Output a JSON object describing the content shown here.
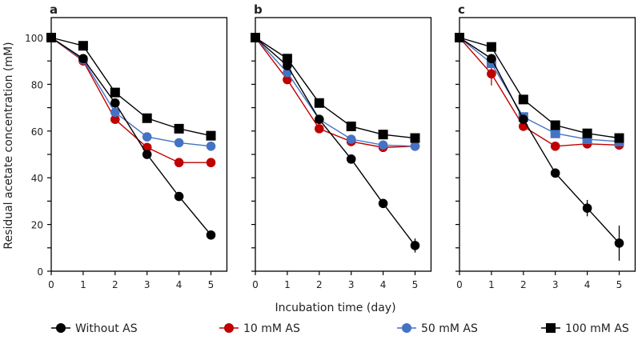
{
  "chart_data": {
    "type": "line",
    "ylabel": "Residual acetate concentration (mM)",
    "xlabel": "Incubation time (day)",
    "x": [
      0,
      1,
      2,
      3,
      4,
      5
    ],
    "xticks": [
      "0",
      "1",
      "2",
      "3",
      "4",
      "5"
    ],
    "yticks": [
      "0",
      "20",
      "40",
      "60",
      "80",
      "100"
    ],
    "ylim": [
      0,
      110
    ],
    "xlim": [
      0,
      5.5
    ],
    "legend_position": "bottom",
    "legend": [
      {
        "name": "Without AS",
        "color": "#000000",
        "marker": "circle"
      },
      {
        "name": "10 mM AS",
        "color": "#c00000",
        "marker": "circle"
      },
      {
        "name": "50 mM AS",
        "color": "#4472c4",
        "marker": "circle"
      },
      {
        "name": "100 mM AS",
        "color": "#000000",
        "marker": "square"
      }
    ],
    "panels": [
      {
        "label": "a",
        "series": [
          {
            "name": "Without AS",
            "values": [
              100,
              91,
              72,
              50,
              32,
              15.5
            ],
            "err": [
              0,
              0,
              0,
              0,
              0,
              0
            ]
          },
          {
            "name": "10 mM AS",
            "values": [
              100,
              90,
              65,
              53,
              46.5,
              46.5
            ],
            "err": [
              0,
              1.5,
              0,
              0,
              0,
              0
            ]
          },
          {
            "name": "50 mM AS",
            "values": [
              100,
              90.5,
              68,
              57.5,
              55,
              53.5
            ],
            "err": [
              0,
              0,
              0,
              0,
              0,
              0
            ]
          },
          {
            "name": "100 mM AS",
            "values": [
              100,
              96.5,
              76.5,
              65.5,
              61,
              58
            ],
            "err": [
              0,
              0,
              0,
              0,
              0,
              0
            ]
          }
        ]
      },
      {
        "label": "b",
        "series": [
          {
            "name": "Without AS",
            "values": [
              100,
              88,
              65,
              48,
              29,
              11
            ],
            "err": [
              0,
              0,
              0,
              0,
              1,
              3
            ]
          },
          {
            "name": "10 mM AS",
            "values": [
              100,
              82,
              61,
              55.5,
              53,
              53.5
            ],
            "err": [
              0,
              0,
              0,
              0,
              0,
              0
            ]
          },
          {
            "name": "50 mM AS",
            "values": [
              100,
              85,
              65,
              56.5,
              54,
              53.5
            ],
            "err": [
              0,
              0,
              0,
              0,
              0,
              0
            ]
          },
          {
            "name": "100 mM AS",
            "values": [
              100,
              91,
              72,
              62,
              58.5,
              57
            ],
            "err": [
              0,
              0,
              0,
              0,
              0,
              0
            ]
          }
        ]
      },
      {
        "label": "c",
        "series": [
          {
            "name": "Without AS",
            "values": [
              100,
              91,
              65,
              42,
              27,
              12
            ],
            "err": [
              0,
              1,
              0,
              0,
              3.5,
              7.5
            ]
          },
          {
            "name": "10 mM AS",
            "values": [
              100,
              84.5,
              62,
              53.5,
              54.5,
              54
            ],
            "err": [
              0,
              5,
              0,
              0,
              0,
              0
            ]
          },
          {
            "name": "50 mM AS",
            "values": [
              100,
              89,
              66,
              59,
              56.5,
              55.5
            ],
            "err": [
              0,
              0,
              0,
              0,
              0,
              0
            ]
          },
          {
            "name": "100 mM AS",
            "values": [
              100,
              96,
              73.5,
              62.5,
              59,
              57
            ],
            "err": [
              0,
              1,
              0,
              0,
              0,
              0
            ]
          }
        ]
      }
    ]
  }
}
